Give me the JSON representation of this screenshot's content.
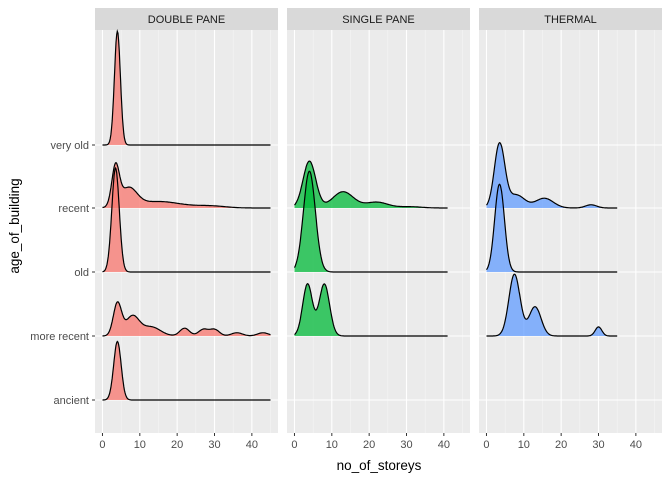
{
  "chart_data": {
    "type": "ridgeline",
    "xlabel": "no_of_storeys",
    "ylabel": "age_of_building",
    "xlim": [
      -2,
      47
    ],
    "x_ticks": [
      0,
      10,
      20,
      30,
      40
    ],
    "y_categories": [
      "ancient",
      "more recent",
      "old",
      "recent",
      "very old"
    ],
    "facets": [
      {
        "name": "DOUBLE PANE",
        "color": "#F8766D",
        "ridges": [
          {
            "category": "ancient",
            "x_range": [
              0,
              45
            ],
            "peaks": [
              {
                "x": 4,
                "h": 0.9,
                "w": 1.0
              }
            ]
          },
          {
            "category": "more recent",
            "x_range": [
              0,
              45
            ],
            "peaks": [
              {
                "x": 4,
                "h": 0.5,
                "w": 1.1
              },
              {
                "x": 8,
                "h": 0.3,
                "w": 1.8
              },
              {
                "x": 13,
                "h": 0.14,
                "w": 2.5
              },
              {
                "x": 22,
                "h": 0.12,
                "w": 1.3
              },
              {
                "x": 27,
                "h": 0.1,
                "w": 1.3
              },
              {
                "x": 30,
                "h": 0.1,
                "w": 1.3
              },
              {
                "x": 36,
                "h": 0.05,
                "w": 1.5
              },
              {
                "x": 43,
                "h": 0.05,
                "w": 1.5
              }
            ]
          },
          {
            "category": "old",
            "x_range": [
              0,
              45
            ],
            "peaks": [
              {
                "x": 3.5,
                "h": 1.6,
                "w": 1.0
              }
            ]
          },
          {
            "category": "recent",
            "x_range": [
              0,
              45
            ],
            "peaks": [
              {
                "x": 3.5,
                "h": 0.6,
                "w": 1.0
              },
              {
                "x": 7,
                "h": 0.28,
                "w": 2.2
              },
              {
                "x": 15,
                "h": 0.1,
                "w": 6.0
              },
              {
                "x": 29,
                "h": 0.03,
                "w": 4.0
              }
            ]
          },
          {
            "category": "very old",
            "x_range": [
              0,
              45
            ],
            "peaks": [
              {
                "x": 4,
                "h": 1.75,
                "w": 0.8
              }
            ]
          }
        ]
      },
      {
        "name": "SINGLE PANE",
        "color": "#00BA38",
        "ridges": [
          {
            "category": "more recent",
            "x_range": [
              0,
              41
            ],
            "peaks": [
              {
                "x": 3.5,
                "h": 0.8,
                "w": 1.3
              },
              {
                "x": 8,
                "h": 0.8,
                "w": 1.4
              }
            ]
          },
          {
            "category": "old",
            "x_range": [
              0,
              41
            ],
            "peaks": [
              {
                "x": 4,
                "h": 1.55,
                "w": 1.6
              }
            ]
          },
          {
            "category": "recent",
            "x_range": [
              0,
              41
            ],
            "peaks": [
              {
                "x": 4,
                "h": 0.72,
                "w": 1.7
              },
              {
                "x": 13,
                "h": 0.25,
                "w": 2.8
              },
              {
                "x": 22,
                "h": 0.09,
                "w": 3.0
              },
              {
                "x": 31,
                "h": 0.02,
                "w": 3.0
              }
            ]
          }
        ]
      },
      {
        "name": "THERMAL",
        "color": "#619CFF",
        "ridges": [
          {
            "category": "more recent",
            "x_range": [
              0,
              35
            ],
            "peaks": [
              {
                "x": 7.5,
                "h": 0.95,
                "w": 1.5
              },
              {
                "x": 13,
                "h": 0.45,
                "w": 1.6
              },
              {
                "x": 30,
                "h": 0.14,
                "w": 0.9
              }
            ]
          },
          {
            "category": "old",
            "x_range": [
              0,
              35
            ],
            "peaks": [
              {
                "x": 3.5,
                "h": 1.35,
                "w": 1.3
              }
            ]
          },
          {
            "category": "recent",
            "x_range": [
              0,
              35
            ],
            "peaks": [
              {
                "x": 3.5,
                "h": 0.98,
                "w": 1.4
              },
              {
                "x": 8,
                "h": 0.2,
                "w": 2.2
              },
              {
                "x": 15.5,
                "h": 0.15,
                "w": 2.4
              },
              {
                "x": 28,
                "h": 0.05,
                "w": 1.5
              }
            ]
          }
        ]
      }
    ]
  }
}
